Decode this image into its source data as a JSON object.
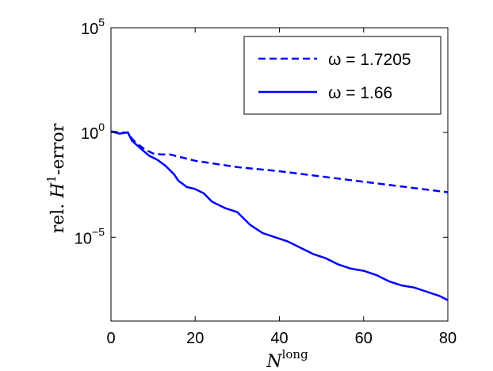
{
  "chart_data": {
    "type": "line",
    "xlabel": {
      "base": "N",
      "superscript": "long"
    },
    "ylabel": {
      "prefix": "rel. ",
      "symbol": "H",
      "superscript": "1",
      "suffix": "-error"
    },
    "xlim": [
      0,
      80
    ],
    "ylim_log10": [
      -9,
      5
    ],
    "yscale": "log",
    "x_ticks": [
      0,
      20,
      40,
      60,
      80
    ],
    "x_tick_labels": [
      "0",
      "20",
      "40",
      "60",
      "80"
    ],
    "y_ticks_log10": [
      5,
      0,
      -5
    ],
    "y_tick_labels": [
      {
        "base": "10",
        "exp": "5"
      },
      {
        "base": "10",
        "exp": "0"
      },
      {
        "base": "10",
        "exp": "−5"
      }
    ],
    "grid": false,
    "legend_position": "top-right",
    "series": [
      {
        "name": "ω = 1.7205",
        "style": "dashed",
        "color": "#0000ff",
        "x": [
          0,
          2,
          4,
          5,
          6,
          8,
          10,
          12,
          14,
          16,
          20,
          25,
          30,
          40,
          50,
          60,
          70,
          80
        ],
        "log10_y": [
          0.05,
          0.0,
          0.0,
          -0.3,
          -0.5,
          -0.8,
          -1.0,
          -1.05,
          -1.05,
          -1.15,
          -1.35,
          -1.5,
          -1.65,
          -1.85,
          -2.1,
          -2.35,
          -2.6,
          -2.85
        ]
      },
      {
        "name": "ω = 1.66",
        "style": "solid",
        "color": "#0000ff",
        "x": [
          0,
          2,
          4,
          5,
          7,
          9,
          11,
          13,
          15,
          16,
          18,
          20,
          22,
          24,
          27,
          30,
          33,
          36,
          39,
          42,
          45,
          48,
          51,
          54,
          57,
          60,
          63,
          66,
          69,
          72,
          75,
          78,
          80
        ],
        "log10_y": [
          0.05,
          -0.05,
          0.0,
          -0.4,
          -0.75,
          -1.1,
          -1.3,
          -1.6,
          -2.0,
          -2.3,
          -2.6,
          -2.7,
          -2.9,
          -3.3,
          -3.6,
          -3.8,
          -4.4,
          -4.8,
          -5.0,
          -5.2,
          -5.5,
          -5.8,
          -6.0,
          -6.3,
          -6.5,
          -6.6,
          -6.8,
          -7.1,
          -7.3,
          -7.4,
          -7.6,
          -7.8,
          -8.0
        ]
      }
    ]
  }
}
